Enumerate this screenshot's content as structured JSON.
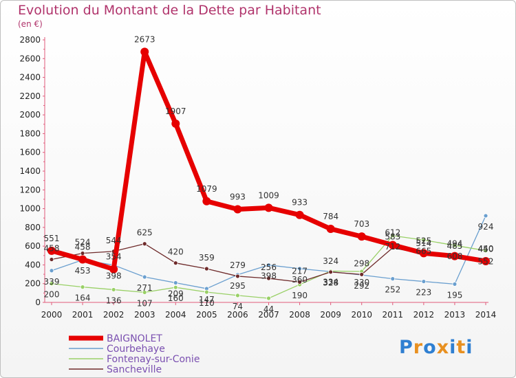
{
  "title": "Evolution du Montant de la Dette par Habitant",
  "subtitle": "(en €)",
  "logo": "Proxiti",
  "chart_data": {
    "type": "line",
    "x": [
      2000,
      2001,
      2002,
      2003,
      2004,
      2005,
      2006,
      2007,
      2008,
      2009,
      2010,
      2011,
      2012,
      2013,
      2014
    ],
    "ylim": [
      0,
      2800
    ],
    "yticks": [
      0,
      200,
      400,
      600,
      800,
      1000,
      1200,
      1400,
      1600,
      1800,
      2000,
      2200,
      2400,
      2600,
      2800
    ],
    "grid": false,
    "legend_position": "bottom-left",
    "series": [
      {
        "name": "BAIGNOLET",
        "color": "#e60000",
        "values": [
          551,
          458,
          354,
          2673,
          1907,
          1079,
          993,
          1009,
          933,
          784,
          703,
          612,
          525,
          494,
          440
        ]
      },
      {
        "name": "Courbehaye",
        "color": "#6a9fcf",
        "values": [
          339,
          453,
          398,
          271,
          209,
          147,
          295,
          398,
          360,
          328,
          292,
          252,
          223,
          195,
          924
        ]
      },
      {
        "name": "Fontenay-sur-Conie",
        "color": "#99d066",
        "values": [
          200,
          164,
          136,
          107,
          160,
          110,
          74,
          44,
          190,
          334,
          330,
          712,
          665,
          608,
          552
        ]
      },
      {
        "name": "Sancheville",
        "color": "#6e2a2a",
        "values": [
          458,
          524,
          544,
          625,
          420,
          359,
          279,
          256,
          217,
          324,
          298,
          583,
          514,
          485,
          450
        ]
      }
    ]
  },
  "logo_colors": [
    "#2f7fd1",
    "#e89020",
    "#2f7fd1",
    "#e89020",
    "#2f7fd1",
    "#e89020",
    "#2f7fd1"
  ]
}
